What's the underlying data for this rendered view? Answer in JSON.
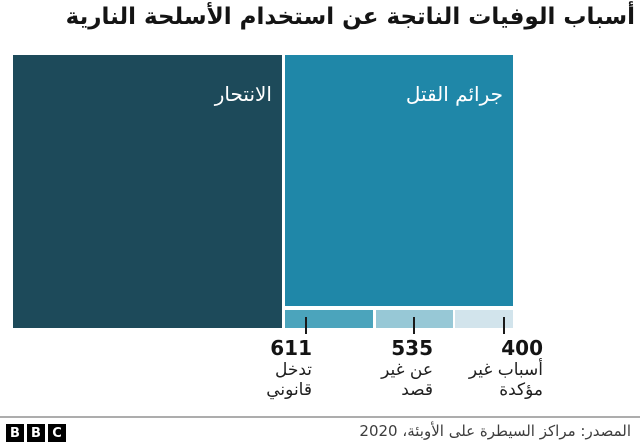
{
  "title": "أسباب الوفيات الناتجة عن استخدام الأسلحة النارية",
  "chart_data": {
    "type": "treemap",
    "title": "أسباب الوفيات الناتجة عن استخدام الأسلحة النارية",
    "legend_position": "none",
    "cells": [
      {
        "label": "الانتحار",
        "value": null,
        "color": "#1d4a5a",
        "label_color": "#ffffff"
      },
      {
        "label": "جرائم القتل",
        "value": null,
        "color": "#1f87a8",
        "label_color": "#ffffff"
      },
      {
        "label": "تدخل قانوني",
        "value": 611,
        "color": "#4ba4bc"
      },
      {
        "label": "عن غير قصد",
        "value": 535,
        "color": "#97c8d6"
      },
      {
        "label": "أسباب غير مؤكدة",
        "value": 400,
        "color": "#d2e4ec"
      }
    ],
    "source": "المصدر: مراكز السيطرة على الأوبئة، 2020"
  },
  "treemap": {
    "suicide": {
      "label": "الانتحار"
    },
    "homicide": {
      "label": "جرائم القتل"
    },
    "annotations": [
      {
        "value": "611",
        "line1": "تدخل",
        "line2": "قانوني"
      },
      {
        "value": "535",
        "line1": "عن غير",
        "line2": "قصد"
      },
      {
        "value": "400",
        "line1": "أسباب غير",
        "line2": "مؤكدة"
      }
    ]
  },
  "footer": {
    "source": "المصدر: مراكز السيطرة على الأوبئة، 2020",
    "bbc_letters": [
      "B",
      "B",
      "C"
    ]
  },
  "colors": {
    "suicide_block": "#1d4a5a",
    "homicide_block": "#1f87a8",
    "legal_block": "#4ba4bc",
    "unintentional_block": "#97c8d6",
    "undetermined_block": "#d2e4ec",
    "tick": "#1a1a1a",
    "divider": "#adadad"
  }
}
